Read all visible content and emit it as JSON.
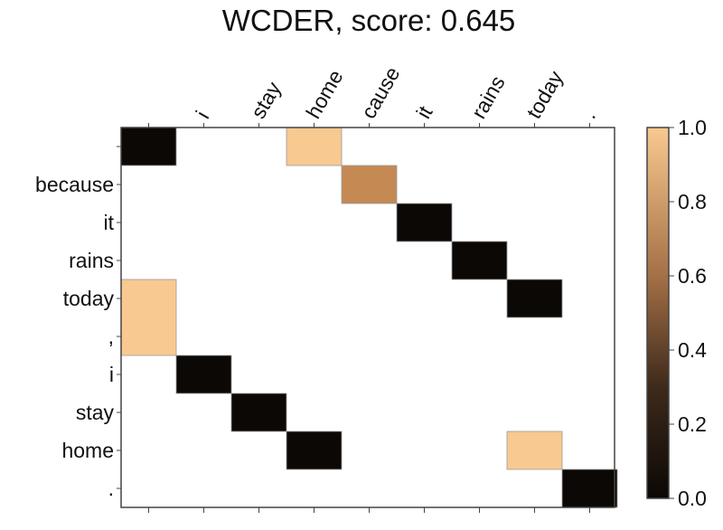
{
  "chart_data": {
    "type": "heatmap",
    "title": "WCDER, score: 0.645",
    "x_labels": [
      "",
      "i",
      "stay",
      "home",
      "cause",
      "it",
      "rains",
      "today",
      "."
    ],
    "y_labels": [
      "",
      "because",
      "it",
      "rains",
      "today",
      ",",
      "i",
      "stay",
      "home",
      "."
    ],
    "cells": [
      {
        "row": 0,
        "col": 0,
        "span": 1,
        "value": 0.0
      },
      {
        "row": 0,
        "col": 3,
        "span": 1,
        "value": 1.0
      },
      {
        "row": 1,
        "col": 4,
        "span": 1,
        "value": 0.6
      },
      {
        "row": 2,
        "col": 5,
        "span": 1,
        "value": 0.0
      },
      {
        "row": 3,
        "col": 6,
        "span": 1,
        "value": 0.0
      },
      {
        "row": 4,
        "col": 7,
        "span": 1,
        "value": 0.0
      },
      {
        "row": 4,
        "col": 0,
        "span": 2,
        "value": 1.0
      },
      {
        "row": 6,
        "col": 1,
        "span": 1,
        "value": 0.0
      },
      {
        "row": 7,
        "col": 2,
        "span": 1,
        "value": 0.0
      },
      {
        "row": 8,
        "col": 3,
        "span": 1,
        "value": 0.0
      },
      {
        "row": 8,
        "col": 7,
        "span": 1,
        "value": 1.0
      },
      {
        "row": 9,
        "col": 8,
        "span": 1,
        "value": 0.0
      }
    ],
    "colorbar": {
      "min": 0.0,
      "max": 1.0,
      "ticks": [
        "0.0",
        "0.2",
        "0.4",
        "0.6",
        "0.8",
        "1.0"
      ],
      "colormap": "copper"
    },
    "colors": {
      "low": "#0b0805",
      "mid": "#c58954",
      "high": "#f8c990",
      "empty": "#ffffff",
      "frame": "#444444"
    }
  }
}
